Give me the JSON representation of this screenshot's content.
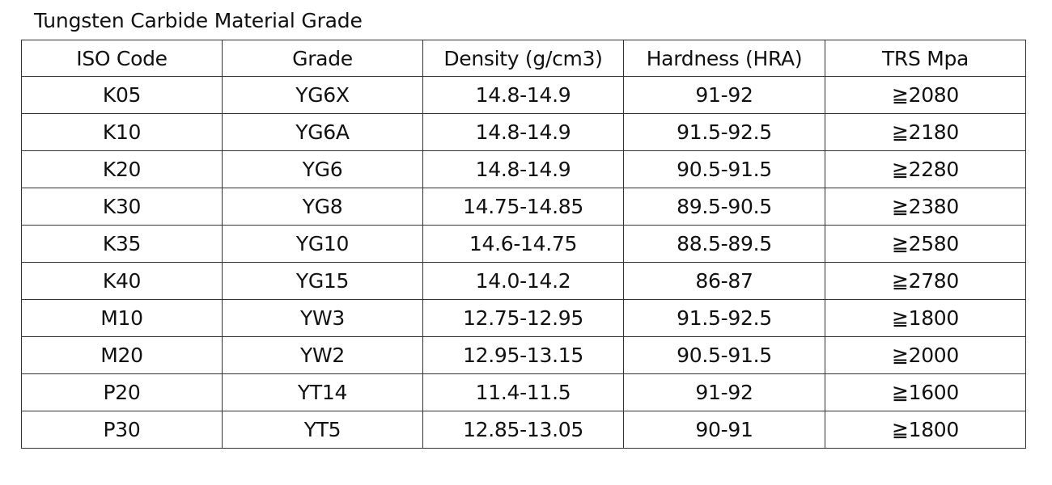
{
  "title": "Tungsten Carbide Material Grade",
  "table": {
    "headers": [
      "ISO Code",
      "Grade",
      "Density (g/cm3)",
      "Hardness (HRA)",
      "TRS Mpa"
    ],
    "rows": [
      [
        "K05",
        "YG6X",
        "14.8-14.9",
        "91-92",
        "≧2080"
      ],
      [
        "K10",
        "YG6A",
        "14.8-14.9",
        "91.5-92.5",
        "≧2180"
      ],
      [
        "K20",
        "YG6",
        "14.8-14.9",
        "90.5-91.5",
        "≧2280"
      ],
      [
        "K30",
        "YG8",
        "14.75-14.85",
        "89.5-90.5",
        "≧2380"
      ],
      [
        "K35",
        "YG10",
        "14.6-14.75",
        "88.5-89.5",
        "≧2580"
      ],
      [
        "K40",
        "YG15",
        "14.0-14.2",
        "86-87",
        "≧2780"
      ],
      [
        "M10",
        "YW3",
        "12.75-12.95",
        "91.5-92.5",
        "≧1800"
      ],
      [
        "M20",
        "YW2",
        "12.95-13.15",
        "90.5-91.5",
        "≧2000"
      ],
      [
        "P20",
        "YT14",
        "11.4-11.5",
        "91-92",
        "≧1600"
      ],
      [
        "P30",
        "YT5",
        "12.85-13.05",
        "90-91",
        "≧1800"
      ]
    ]
  }
}
